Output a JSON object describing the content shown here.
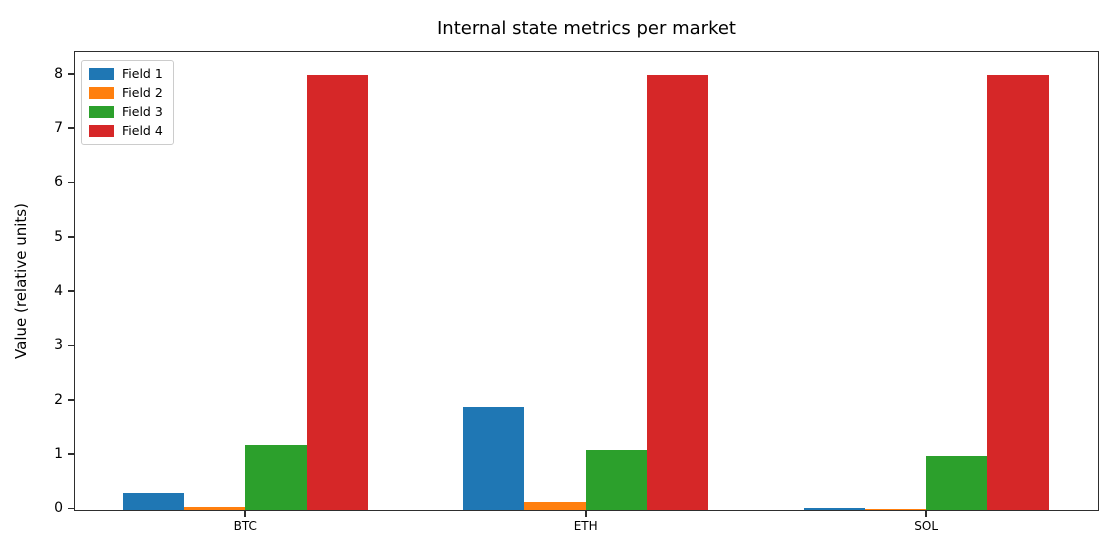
{
  "chart_data": {
    "type": "bar",
    "title": "Internal state metrics per market",
    "xlabel": "",
    "ylabel": "Value (relative units)",
    "categories": [
      "BTC",
      "ETH",
      "SOL"
    ],
    "series": [
      {
        "name": "Field 1",
        "color": "#1f77b4",
        "values": [
          0.32,
          1.9,
          0.03
        ]
      },
      {
        "name": "Field 2",
        "color": "#ff7f0e",
        "values": [
          0.05,
          0.15,
          0.02
        ]
      },
      {
        "name": "Field 3",
        "color": "#2ca02c",
        "values": [
          1.2,
          1.1,
          1.0
        ]
      },
      {
        "name": "Field 4",
        "color": "#d62728",
        "values": [
          8.0,
          8.0,
          8.0
        ]
      }
    ],
    "yticks": [
      0,
      1,
      2,
      3,
      4,
      5,
      6,
      7,
      8
    ],
    "ylim": [
      0,
      8.4
    ],
    "xlim": [
      -0.5,
      2.5
    ],
    "bar_width": 0.18,
    "grid": false,
    "legend_position": "upper left",
    "axis_color": "#2e2e2e"
  }
}
